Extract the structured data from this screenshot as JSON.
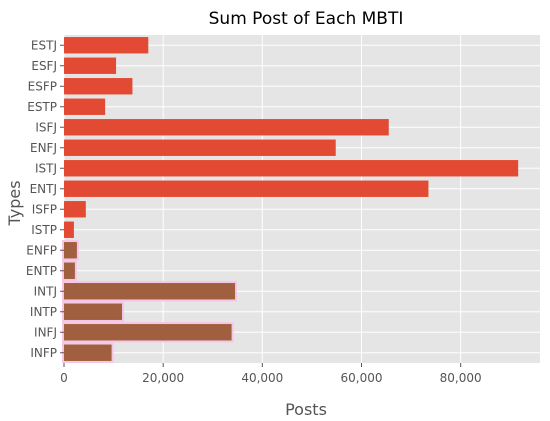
{
  "chart_data": {
    "type": "bar",
    "orientation": "horizontal",
    "title": "Sum Post of Each MBTI",
    "xlabel": "Posts",
    "ylabel": "Types",
    "categories": [
      "ESTJ",
      "ESFJ",
      "ESFP",
      "ESTP",
      "ISFJ",
      "ENFJ",
      "ISTJ",
      "ENTJ",
      "ISFP",
      "ISTP",
      "ENFP",
      "ENTP",
      "INTJ",
      "INTP",
      "INFJ",
      "INFP"
    ],
    "values": [
      17000,
      10500,
      13800,
      8300,
      65500,
      54800,
      91600,
      73500,
      4400,
      2000,
      2600,
      2200,
      34500,
      11700,
      33800,
      9600
    ],
    "xlim": [
      0,
      96000
    ],
    "xticks": [
      0,
      20000,
      40000,
      60000,
      80000
    ],
    "xtick_labels": [
      "0",
      "20,000",
      "40,000",
      "60,000",
      "80,000"
    ],
    "grid": true,
    "colors": {
      "background": "#e5e5e5",
      "grid": "#ffffff",
      "bar": "#e24a33",
      "bar_overlap": "#a0603f",
      "highlight": "#f5c6e6"
    },
    "highlighted_categories": [
      "ENFP",
      "ENTP",
      "INTJ",
      "INTP",
      "INFJ",
      "INFP"
    ]
  }
}
